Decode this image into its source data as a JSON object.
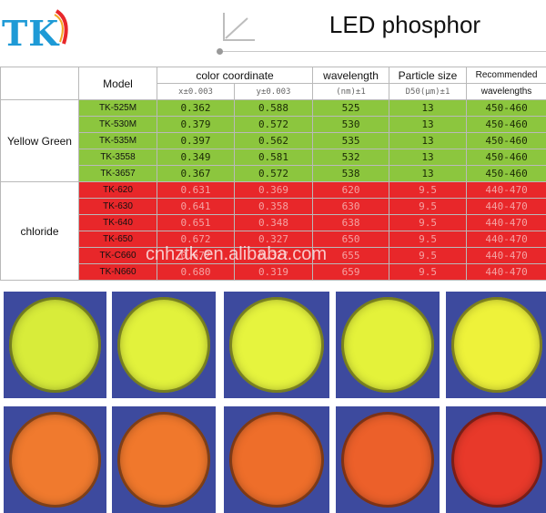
{
  "brand": {
    "logo_text": "TK"
  },
  "title": "LED phosphor",
  "colors": {
    "green_row": "#8cc63e",
    "red_row": "#e8272a",
    "logo": "#1e9ad6",
    "photo_bg": "#3d4a9e"
  },
  "table": {
    "headers": {
      "model": "Model",
      "color_coordinate": "color coordinate",
      "x_sub": "x±0.003",
      "y_sub": "y±0.003",
      "wavelength": "wavelength",
      "wavelength_sub": "(nm)±1",
      "particle_size": "Particle size",
      "particle_sub": "D50(μm)±1",
      "recommended": "Recommended",
      "recommended_sub": "wavelengths"
    },
    "groups": [
      {
        "name": "Yellow Green",
        "rows": [
          {
            "model": "TK-525M",
            "x": "0.362",
            "y": "0.588",
            "wavelength": "525",
            "particle": "13",
            "recommended": "450-460"
          },
          {
            "model": "TK-530M",
            "x": "0.379",
            "y": "0.572",
            "wavelength": "530",
            "particle": "13",
            "recommended": "450-460"
          },
          {
            "model": "TK-535M",
            "x": "0.397",
            "y": "0.562",
            "wavelength": "535",
            "particle": "13",
            "recommended": "450-460"
          },
          {
            "model": "TK-3558",
            "x": "0.349",
            "y": "0.581",
            "wavelength": "532",
            "particle": "13",
            "recommended": "450-460"
          },
          {
            "model": "TK-3657",
            "x": "0.367",
            "y": "0.572",
            "wavelength": "538",
            "particle": "13",
            "recommended": "450-460"
          }
        ]
      },
      {
        "name": "chloride",
        "rows": [
          {
            "model": "TK-620",
            "x": "0.631",
            "y": "0.369",
            "wavelength": "620",
            "particle": "9.5",
            "recommended": "440-470"
          },
          {
            "model": "TK-630",
            "x": "0.641",
            "y": "0.358",
            "wavelength": "630",
            "particle": "9.5",
            "recommended": "440-470"
          },
          {
            "model": "TK-640",
            "x": "0.651",
            "y": "0.348",
            "wavelength": "638",
            "particle": "9.5",
            "recommended": "440-470"
          },
          {
            "model": "TK-650",
            "x": "0.672",
            "y": "0.327",
            "wavelength": "650",
            "particle": "9.5",
            "recommended": "440-470"
          },
          {
            "model": "TK-C660",
            "x": "0.672",
            "y": "0.327",
            "wavelength": "655",
            "particle": "9.5",
            "recommended": "440-470"
          },
          {
            "model": "TK-N660",
            "x": "0.680",
            "y": "0.319",
            "wavelength": "659",
            "particle": "9.5",
            "recommended": "440-470"
          }
        ]
      }
    ]
  },
  "watermark": "cnhztk.en.alibaba.com",
  "photos": {
    "top_row_colors": [
      "#d8ec3a",
      "#e2f23c",
      "#e6f43e",
      "#e4f23a",
      "#eef23a"
    ],
    "bottom_row_colors": [
      "#f07a2e",
      "#f0782c",
      "#ee6e2a",
      "#ec602a",
      "#e8392a"
    ]
  }
}
